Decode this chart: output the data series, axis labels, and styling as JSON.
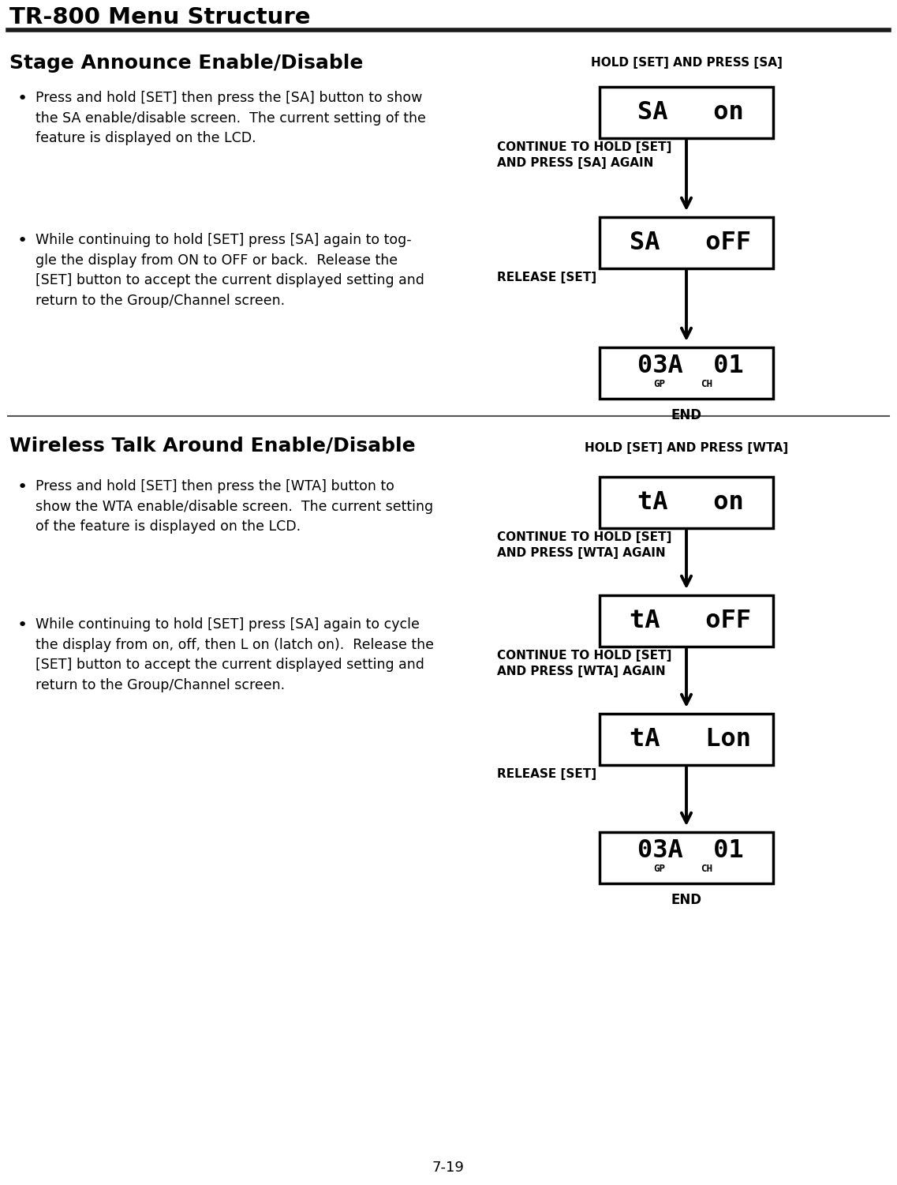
{
  "title": "TR-800 Menu Structure",
  "bg_color": "#ffffff",
  "text_color": "#000000",
  "section1_heading": "Stage Announce Enable/Disable",
  "section1_bullet1": "Press and hold [SET] then press the [SA] button to show\nthe SA enable/disable screen.  The current setting of the\nfeature is displayed on the LCD.",
  "section1_bullet2": "While continuing to hold [SET] press [SA] again to tog-\ngle the display from ON to OFF or back.  Release the\n[SET] button to accept the current displayed setting and\nreturn to the Group/Channel screen.",
  "section2_heading": "Wireless Talk Around Enable/Disable",
  "section2_bullet1": "Press and hold [SET] then press the [WTA] button to\nshow the WTA enable/disable screen.  The current setting\nof the feature is displayed on the LCD.",
  "section2_bullet2": "While continuing to hold [SET] press [SA] again to cycle\nthe display from on, off, then L on (latch on).  Release the\n[SET] button to accept the current displayed setting and\nreturn to the Group/Channel screen.",
  "page_number": "7-19",
  "end_label": "END"
}
